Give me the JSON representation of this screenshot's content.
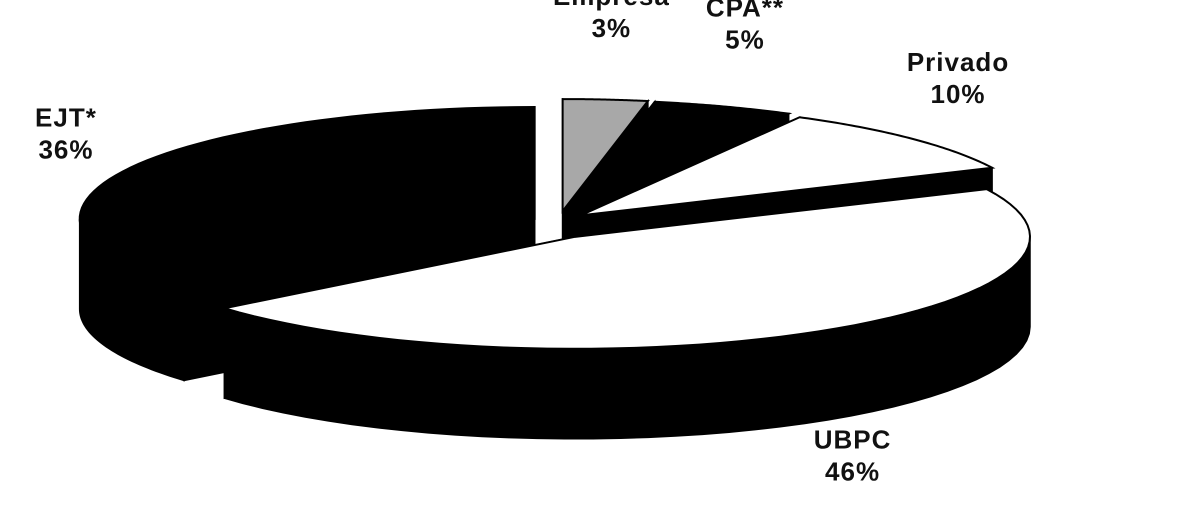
{
  "chart_data": {
    "type": "pie",
    "categories": [
      "Empresa",
      "CPA**",
      "Privado",
      "UBPC",
      "EJT*"
    ],
    "values": [
      3,
      5,
      10,
      46,
      36
    ],
    "value_labels": [
      "3%",
      "5%",
      "10%",
      "46%",
      "36%"
    ],
    "colors": [
      "#a8a8a8",
      "#000000",
      "#ffffff",
      "#ffffff",
      "#000000"
    ],
    "exploded": true,
    "three_d": true
  }
}
